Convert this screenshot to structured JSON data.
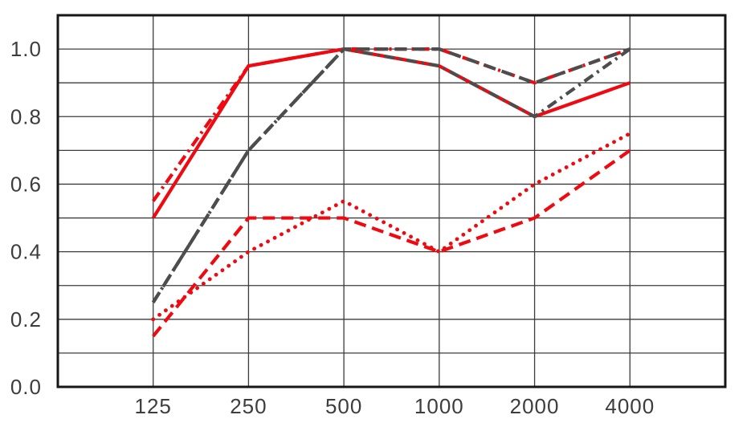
{
  "chart_data": {
    "type": "line",
    "title": "",
    "xlabel": "",
    "ylabel": "",
    "categories": [
      "125",
      "250",
      "500",
      "1000",
      "2000",
      "4000"
    ],
    "y_axis": {
      "tick_labels": [
        "0.0",
        "0.2",
        "0.4",
        "0.6",
        "0.8",
        "1.0"
      ],
      "tick_values": [
        0,
        0.2,
        0.4,
        0.6,
        0.8,
        1.0
      ],
      "min": 0,
      "max": 1.1,
      "grid_step": 0.1
    },
    "grid": "on",
    "legend": "none",
    "colors": {
      "red": "#ee0a10",
      "gray": "#4d4d4d",
      "gridline": "#3c3c3c",
      "border": "#161616",
      "label": "#3d3d3f"
    },
    "series": [
      {
        "name": "red-solid",
        "color": "#ee0a10",
        "style": "solid",
        "values": [
          0.5,
          0.95,
          1.0,
          0.95,
          0.8,
          0.9
        ]
      },
      {
        "name": "red-dash-dot",
        "color": "#ee0a10",
        "style": "dash-dot",
        "values": [
          0.55,
          0.95,
          1.0,
          1.0,
          0.9,
          1.0
        ]
      },
      {
        "name": "red-dashed",
        "color": "#ee0a10",
        "style": "dashed",
        "values": [
          0.15,
          0.5,
          0.5,
          0.4,
          0.5,
          0.7
        ]
      },
      {
        "name": "red-dotted",
        "color": "#ee0a10",
        "style": "dotted",
        "values": [
          0.2,
          0.4,
          0.55,
          0.4,
          0.6,
          0.75
        ]
      },
      {
        "name": "gray-dashed",
        "color": "#4d4d4d",
        "style": "dashed",
        "values": [
          0.25,
          0.7,
          1.0,
          1.0,
          0.9,
          1.0
        ]
      },
      {
        "name": "gray-dash-dot",
        "color": "#4d4d4d",
        "style": "dash-dot",
        "values": [
          0.25,
          0.7,
          1.0,
          0.95,
          0.8,
          1.0
        ]
      }
    ]
  }
}
